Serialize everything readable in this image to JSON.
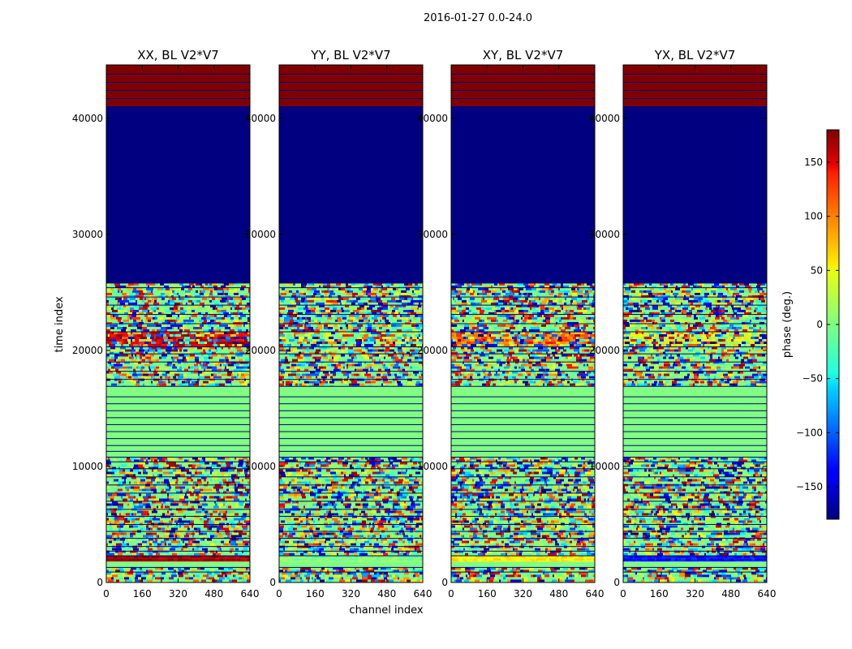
{
  "chart_data": {
    "type": "heatmap",
    "suptitle": "2016-01-27 0.0-24.0",
    "xlabel": "channel index",
    "ylabel": "time index",
    "xlim": [
      0,
      640
    ],
    "ylim": [
      0,
      44600
    ],
    "xticks": [
      0,
      160,
      320,
      480,
      640
    ],
    "yticks": [
      0,
      10000,
      20000,
      30000,
      40000
    ],
    "colorbar": {
      "label": "phase (deg.)",
      "range": [
        -180,
        180
      ],
      "ticks": [
        150,
        100,
        50,
        0,
        -50,
        -100,
        -150
      ],
      "colormap": "jet"
    },
    "panels": [
      {
        "title": "XX, BL V2*V7"
      },
      {
        "title": "YY, BL V2*V7"
      },
      {
        "title": "XY, BL V2*V7"
      },
      {
        "title": "YX, BL V2*V7"
      }
    ],
    "time_bands": [
      {
        "start": 0,
        "end": 1300,
        "kind": "noisy"
      },
      {
        "start": 1300,
        "end": 1800,
        "kind": "flat",
        "value": 0
      },
      {
        "start": 1800,
        "end": 2300,
        "kind": "band",
        "values": [
          170,
          0,
          50,
          -130
        ]
      },
      {
        "start": 2300,
        "end": 3800,
        "kind": "noisy"
      },
      {
        "start": 3800,
        "end": 10800,
        "kind": "noisy"
      },
      {
        "start": 10800,
        "end": 16900,
        "kind": "flat",
        "value": 0
      },
      {
        "start": 16900,
        "end": 20300,
        "kind": "noisy"
      },
      {
        "start": 20300,
        "end": 21600,
        "kind": "band_noisy",
        "values": [
          150,
          10,
          90,
          30
        ]
      },
      {
        "start": 21600,
        "end": 25800,
        "kind": "noisy"
      },
      {
        "start": 25800,
        "end": 41000,
        "kind": "flat",
        "value": -180
      },
      {
        "start": 41000,
        "end": 44600,
        "kind": "flat",
        "value": 180
      }
    ]
  }
}
